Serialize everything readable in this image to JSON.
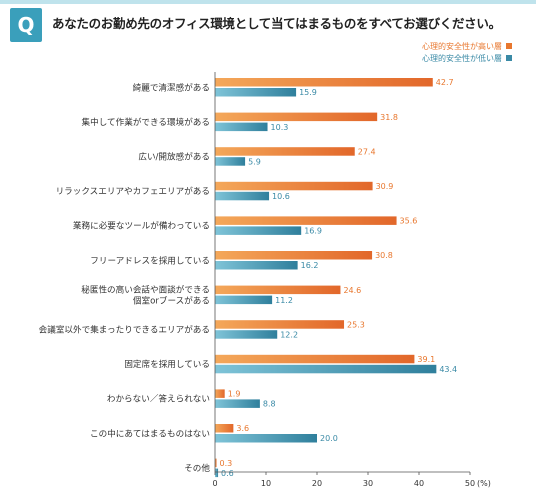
{
  "question": {
    "badge": "Q",
    "text": "あなたのお勤め先のオフィス環境として当てはまるものをすべてお選びください。"
  },
  "chart_data": {
    "type": "bar",
    "orientation": "horizontal",
    "categories": [
      [
        "綺麗で清潔感がある"
      ],
      [
        "集中して作業ができる環境がある"
      ],
      [
        "広い/開放感がある"
      ],
      [
        "リラックスエリアやカフェエリアがある"
      ],
      [
        "業務に必要なツールが備わっている"
      ],
      [
        "フリーアドレスを採用している"
      ],
      [
        "秘匿性の高い会話や面談ができる",
        "個室orブースがある"
      ],
      [
        "会議室以外で集まったりできるエリアがある"
      ],
      [
        "固定席を採用している"
      ],
      [
        "わからない／答えられない"
      ],
      [
        "この中にあてはまるものはない"
      ],
      [
        "その他"
      ]
    ],
    "series": [
      {
        "name": "心理的安全性が高い層",
        "color": "#e8772e",
        "values": [
          42.7,
          31.8,
          27.4,
          30.9,
          35.6,
          30.8,
          24.6,
          25.3,
          39.1,
          1.9,
          3.6,
          0.3
        ],
        "labels": [
          "42.7",
          "31.8",
          "27.4",
          "30.9",
          "35.6",
          "30.8",
          "24.6",
          "25.3",
          "39.1",
          "1.9",
          "3.6",
          "0.3"
        ]
      },
      {
        "name": "心理的安全性が低い層",
        "color": "#3a8aa6",
        "values": [
          15.9,
          10.3,
          5.9,
          10.6,
          16.9,
          16.2,
          11.2,
          12.2,
          43.4,
          8.8,
          20.0,
          0.6
        ],
        "labels": [
          "15.9",
          "10.3",
          "5.9",
          "10.6",
          "16.9",
          "16.2",
          "11.2",
          "12.2",
          "43.4",
          "8.8",
          "20.0",
          "0.6"
        ]
      }
    ],
    "xlim": [
      0,
      50
    ],
    "xticks": [
      "0",
      "10",
      "20",
      "30",
      "40",
      "50"
    ],
    "unit": "(%)",
    "legend_position": "top-right",
    "grid": false
  }
}
